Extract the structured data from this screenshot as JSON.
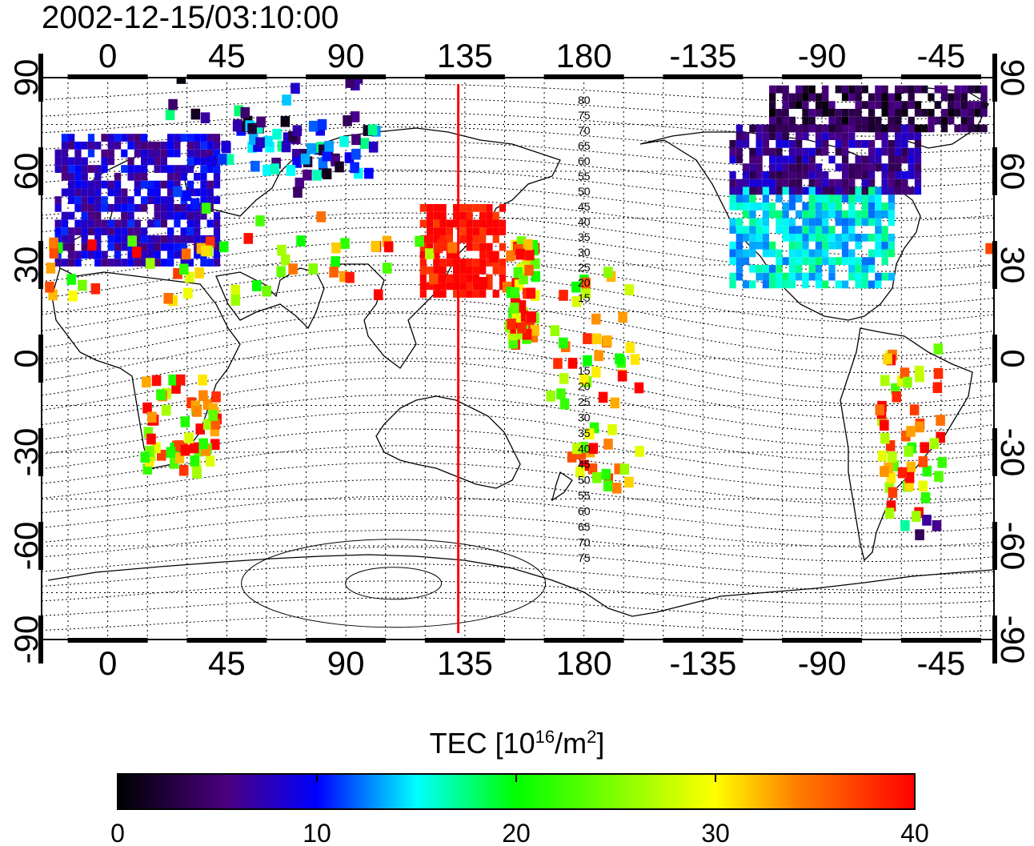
{
  "timestamp": "2002-12-15/03:10:00",
  "map": {
    "lon_ticks_top": [
      "0",
      "45",
      "90",
      "135",
      "180",
      "-135",
      "-90",
      "-45"
    ],
    "lon_ticks_bottom": [
      "0",
      "45",
      "90",
      "135",
      "180",
      "-135",
      "-90",
      "-45"
    ],
    "lat_ticks_left": [
      "90",
      "60",
      "30",
      "0",
      "-30",
      "-60",
      "-90"
    ],
    "lat_ticks_right": [
      "90",
      "60",
      "30",
      "0",
      "-30",
      "-60",
      "-90"
    ],
    "lon_range": [
      -25,
      335
    ],
    "lat_range": [
      -90,
      90
    ],
    "grid": true,
    "sun_meridian_lon": 132.5,
    "sun_meridian_color": "#ff0000",
    "contour_labels_north": [
      "80",
      "75",
      "70",
      "65",
      "60",
      "55",
      "50",
      "45",
      "40",
      "35",
      "30",
      "25",
      "20",
      "15"
    ],
    "contour_labels_south": [
      "15",
      "20",
      "25",
      "30",
      "35",
      "40",
      "45",
      "50",
      "55",
      "60",
      "65",
      "70",
      "75"
    ]
  },
  "colorbar": {
    "title_prefix": "TEC  [10",
    "title_exp": "16",
    "title_mid": "/m",
    "title_exp2": "2",
    "title_suffix": "]",
    "min": 0,
    "max": 40,
    "tick_labels": [
      "0",
      "10",
      "20",
      "30",
      "40"
    ],
    "colors": [
      "#000000",
      "#4b0082",
      "#0000ff",
      "#00ffff",
      "#00ff00",
      "#ffff00",
      "#ff8000",
      "#ff0000"
    ]
  },
  "tec_regions": [
    {
      "region": "europe",
      "lon": [
        -20,
        42
      ],
      "lat": [
        32,
        72
      ],
      "tec": 8
    },
    {
      "region": "north-america",
      "lon": [
        -125,
        -65
      ],
      "lat": [
        25,
        55
      ],
      "tec": 15
    },
    {
      "region": "east-asia",
      "lon": [
        118,
        150
      ],
      "lat": [
        22,
        50
      ],
      "tec": 40
    },
    {
      "region": "arctic-north-america",
      "lon": [
        -125,
        -55
      ],
      "lat": [
        55,
        75
      ],
      "tec": 6
    },
    {
      "region": "arctic-polar",
      "lon": [
        -110,
        -30
      ],
      "lat": [
        75,
        88
      ],
      "tec": 3
    }
  ]
}
